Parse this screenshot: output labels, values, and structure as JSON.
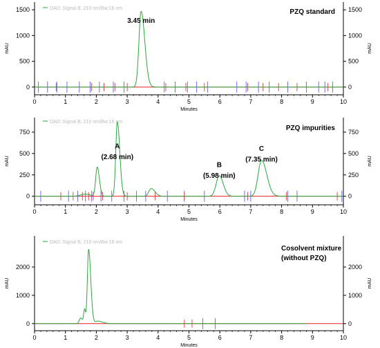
{
  "colors": {
    "trace": "#2aa63f",
    "baseline": "#e02020",
    "tick_blue": "#4a4aff",
    "tick_red": "#e02020",
    "legend_text": "#bbbbbb",
    "axis": "#000000"
  },
  "chart_data": [
    {
      "type": "line",
      "title": "PZQ standard",
      "legend": "DAD: Signal B, 210 nm/Bw:16 nm",
      "xlabel": "Minutes",
      "ylabel": "mAU",
      "ylabel_right": "mAU",
      "xlim": [
        0,
        10
      ],
      "ylim": [
        -150,
        1650
      ],
      "xticks": [
        0,
        1,
        2,
        3,
        4,
        5,
        6,
        7,
        8,
        9,
        10
      ],
      "yticks": [
        0,
        500,
        1000,
        1500
      ],
      "grid": false,
      "peaks": [
        {
          "t": 3.45,
          "h": 1470,
          "wl": 0.07,
          "wr": 0.12
        }
      ],
      "annotations": [
        {
          "text": "3.45 min",
          "x": 3.45,
          "y": 1250
        }
      ],
      "event_ticks_blue": [
        0.12,
        0.42,
        0.72,
        1.05,
        1.45,
        1.8,
        2.1,
        2.55,
        2.9,
        4.2,
        4.55,
        4.95,
        5.25,
        5.6,
        6.55,
        6.85,
        7.25,
        7.6,
        8.2,
        8.8,
        9.2,
        9.4,
        9.65
      ],
      "event_ticks_red": [
        0.7,
        1.85,
        2.25,
        2.6,
        3.0,
        4.25,
        4.9,
        5.5,
        6.9,
        7.4,
        7.9,
        8.5,
        9.5
      ]
    },
    {
      "type": "line",
      "title": "PZQ impurities",
      "legend": "DAD: Signal B, 210 nm/Bw:16 nm",
      "xlabel": "Minutes",
      "ylabel": "mAU",
      "ylabel_right": "mAU",
      "xlim": [
        0,
        10
      ],
      "ylim": [
        -100,
        920
      ],
      "xticks": [
        0,
        1,
        2,
        3,
        4,
        5,
        6,
        7,
        8,
        9,
        10
      ],
      "yticks": [
        0,
        250,
        500,
        750
      ],
      "grid": false,
      "peaks": [
        {
          "t": 1.65,
          "h": 25,
          "wl": 0.15,
          "wr": 0.15
        },
        {
          "t": 2.03,
          "h": 340,
          "wl": 0.05,
          "wr": 0.07
        },
        {
          "t": 2.68,
          "h": 870,
          "wl": 0.05,
          "wr": 0.08
        },
        {
          "t": 3.78,
          "h": 90,
          "wl": 0.08,
          "wr": 0.12
        },
        {
          "t": 5.98,
          "h": 240,
          "wl": 0.1,
          "wr": 0.13
        },
        {
          "t": 7.35,
          "h": 420,
          "wl": 0.11,
          "wr": 0.17
        }
      ],
      "annotations": [
        {
          "text": "A",
          "x": 2.68,
          "y": 560
        },
        {
          "text": "(2.68 min)",
          "x": 2.68,
          "y": 435
        },
        {
          "text": "B",
          "x": 5.98,
          "y": 340
        },
        {
          "text": "(5.98 min)",
          "x": 5.98,
          "y": 215
        },
        {
          "text": "C",
          "x": 7.35,
          "y": 530
        },
        {
          "text": "(7.35 min)",
          "x": 7.35,
          "y": 405
        }
      ],
      "event_ticks_blue": [
        0.2,
        1.1,
        1.4,
        1.65,
        1.85,
        2.15,
        2.5,
        2.9,
        3.3,
        3.6,
        4.3,
        4.85,
        5.5,
        6.8,
        7.0,
        8.2,
        8.5,
        9.95
      ],
      "event_ticks_red": [
        0.85,
        1.25,
        1.55,
        1.75,
        1.9,
        2.2,
        3.0,
        3.9,
        4.85,
        6.9,
        8.15,
        9.8
      ]
    },
    {
      "type": "line",
      "title": "Cosolvent mixture (without PZQ)",
      "title_lines": [
        "Cosolvent mixture",
        "(without PZQ)"
      ],
      "legend": "DAD: Signal B, 210 nm/Bw:16 nm",
      "xlabel": "Minutes",
      "ylabel": "mAU",
      "ylabel_right": "mAU",
      "xlim": [
        0,
        10
      ],
      "ylim": [
        -250,
        3100
      ],
      "xticks": [
        0,
        1,
        2,
        3,
        4,
        5,
        6,
        7,
        8,
        9,
        10
      ],
      "yticks": [
        0,
        1000,
        2000
      ],
      "grid": false,
      "peaks": [
        {
          "t": 1.5,
          "h": 200,
          "wl": 0.05,
          "wr": 0.05
        },
        {
          "t": 1.62,
          "h": 500,
          "wl": 0.03,
          "wr": 0.03
        },
        {
          "t": 1.75,
          "h": 2620,
          "wl": 0.04,
          "wr": 0.07
        },
        {
          "t": 2.05,
          "h": 90,
          "wl": 0.08,
          "wr": 0.15
        }
      ],
      "annotations": [],
      "event_ticks_blue": [
        5.45,
        5.85
      ],
      "event_ticks_red": [
        4.85,
        5.1
      ]
    }
  ]
}
